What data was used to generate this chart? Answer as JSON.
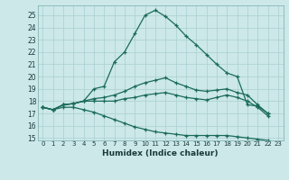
{
  "xlabel": "Humidex (Indice chaleur)",
  "background_color": "#cce8e8",
  "grid_color": "#aacfcf",
  "line_color": "#1a6b5a",
  "xlim": [
    -0.5,
    23.5
  ],
  "ylim": [
    14.8,
    25.8
  ],
  "yticks": [
    15,
    16,
    17,
    18,
    19,
    20,
    21,
    22,
    23,
    24,
    25
  ],
  "xticks": [
    0,
    1,
    2,
    3,
    4,
    5,
    6,
    7,
    8,
    9,
    10,
    11,
    12,
    13,
    14,
    15,
    16,
    17,
    18,
    19,
    20,
    21,
    22,
    23
  ],
  "line1_y": [
    17.5,
    17.3,
    17.7,
    17.8,
    18.0,
    19.0,
    19.2,
    21.2,
    22.0,
    23.5,
    25.0,
    25.4,
    24.9,
    24.2,
    23.3,
    22.6,
    21.8,
    21.0,
    20.3,
    20.0,
    17.7,
    17.6,
    17.0,
    null
  ],
  "line2_y": [
    17.5,
    17.3,
    17.7,
    17.8,
    18.0,
    18.2,
    18.3,
    18.5,
    18.8,
    19.2,
    19.5,
    19.7,
    19.9,
    19.5,
    19.2,
    18.9,
    18.8,
    18.9,
    19.0,
    18.7,
    18.5,
    17.7,
    17.0,
    null
  ],
  "line3_y": [
    17.5,
    17.3,
    17.7,
    17.8,
    18.0,
    18.0,
    18.0,
    18.0,
    18.2,
    18.3,
    18.5,
    18.6,
    18.7,
    18.5,
    18.3,
    18.2,
    18.1,
    18.3,
    18.5,
    18.3,
    18.0,
    17.5,
    16.8,
    null
  ],
  "line4_y": [
    17.5,
    17.3,
    17.5,
    17.5,
    17.3,
    17.1,
    16.8,
    16.5,
    16.2,
    15.9,
    15.7,
    15.5,
    15.4,
    15.3,
    15.2,
    15.2,
    15.2,
    15.2,
    15.2,
    15.1,
    15.0,
    14.9,
    14.8,
    null
  ]
}
